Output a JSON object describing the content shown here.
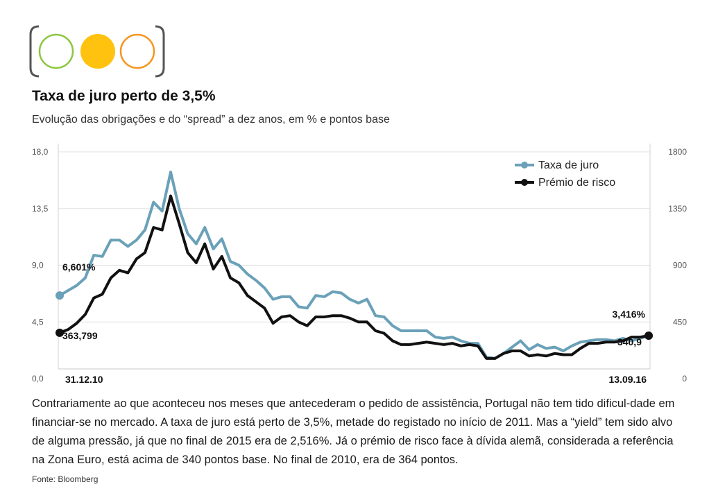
{
  "header": {
    "title": "Taxa de juro perto de 3,5%",
    "subtitle": "Evolução das obrigações e do “spread” a dez anos, em % e pontos base"
  },
  "caption": "Contrariamente ao que aconteceu nos meses que antecederam o pedido de assistência, Portugal não tem tido dificul-dade em financiar-se no mercado. A taxa de juro está perto de 3,5%, metade do registado no início de 2011. Mas a “yield” tem sido alvo de alguma pressão, já que no final de 2015 era de  2,516%. Já o prémio de risco face à dívida alemã, considerada a referência na Zona Euro, está acima de 340 pontos base. No final de 2010, era de 364 pontos.",
  "source": "Fonte: Bloomberg",
  "logo_colors": [
    "#8cc63f",
    "#ffc20e",
    "#f7941d"
  ],
  "chart_data": {
    "type": "line",
    "title": "Taxa de juro perto de 3,5%",
    "x_start_label": "31.12.10",
    "x_end_label": "13.09.16",
    "grid": true,
    "legend_position": "top-right",
    "y_left": {
      "ticks": [
        "18,0",
        "13,5",
        "9,0",
        "4,5",
        "0,0"
      ],
      "values": [
        18,
        13.5,
        9,
        4.5,
        0
      ],
      "range": [
        0,
        18
      ]
    },
    "y_right": {
      "ticks": [
        "1800",
        "1350",
        "900",
        "450",
        "0"
      ],
      "values": [
        1800,
        1350,
        900,
        450,
        0
      ],
      "range": [
        0,
        1800
      ]
    },
    "series": [
      {
        "name": "Taxa de juro",
        "axis": "left",
        "color": "#6aa1b8",
        "start_label": "6,601%",
        "end_label": "3,416%",
        "values": [
          6.6,
          7.0,
          7.4,
          8.0,
          9.8,
          9.7,
          11.0,
          11.0,
          10.5,
          11.0,
          11.8,
          14.0,
          13.3,
          16.4,
          13.5,
          11.5,
          10.7,
          12.0,
          10.3,
          11.1,
          9.3,
          9.0,
          8.3,
          7.8,
          7.2,
          6.3,
          6.5,
          6.5,
          5.7,
          5.6,
          6.6,
          6.5,
          6.9,
          6.8,
          6.3,
          6.0,
          6.3,
          5.0,
          4.9,
          4.2,
          3.8,
          3.8,
          3.8,
          3.8,
          3.3,
          3.2,
          3.3,
          3.0,
          2.8,
          2.8,
          1.7,
          1.6,
          2.0,
          2.5,
          3.0,
          2.3,
          2.7,
          2.4,
          2.5,
          2.2,
          2.6,
          2.9,
          3.0,
          3.1,
          3.1,
          3.0,
          3.2,
          3.0,
          3.2,
          3.416
        ]
      },
      {
        "name": "Prémio de risco",
        "axis": "right",
        "color": "#111111",
        "start_label": "363,799",
        "end_label": "340,9",
        "values": [
          364,
          390,
          440,
          510,
          640,
          670,
          800,
          860,
          840,
          950,
          1000,
          1200,
          1180,
          1450,
          1230,
          1000,
          920,
          1070,
          870,
          970,
          800,
          760,
          660,
          610,
          560,
          440,
          490,
          500,
          450,
          420,
          490,
          490,
          500,
          500,
          480,
          450,
          450,
          380,
          360,
          300,
          270,
          270,
          280,
          290,
          280,
          270,
          280,
          260,
          270,
          260,
          160,
          160,
          200,
          220,
          220,
          180,
          190,
          180,
          200,
          190,
          190,
          240,
          280,
          280,
          290,
          290,
          300,
          330,
          330,
          340.9
        ]
      }
    ]
  }
}
